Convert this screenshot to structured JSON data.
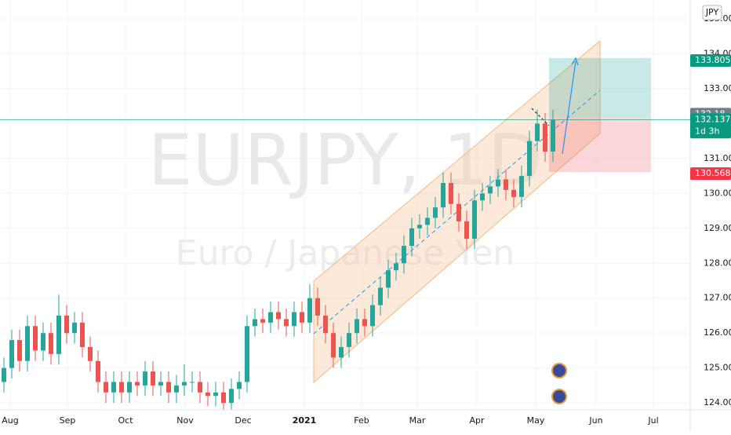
{
  "chart_data": {
    "type": "candlestick",
    "title": "EURJPY, 1D",
    "subtitle": "Euro / Japanese Yen",
    "currency": "JPY",
    "up_color": "#26a69a",
    "down_color": "#ef5350",
    "xlim": [
      -0.5,
      87.5
    ],
    "xticks": [
      {
        "value": 0.8,
        "label": "Aug"
      },
      {
        "value": 8.1,
        "label": "Sep"
      },
      {
        "value": 15.5,
        "label": "Oct"
      },
      {
        "value": 23.1,
        "label": "Nov"
      },
      {
        "value": 30.5,
        "label": "Dec"
      },
      {
        "value": 38.3,
        "label": "2021"
      },
      {
        "value": 45.6,
        "label": "Feb"
      },
      {
        "value": 52.7,
        "label": "Mar"
      },
      {
        "value": 60.3,
        "label": "Apr"
      },
      {
        "value": 67.8,
        "label": "May"
      },
      {
        "value": 75.5,
        "label": "Jun"
      },
      {
        "value": 82.8,
        "label": "Jul"
      }
    ],
    "ylim": [
      123.8,
      135.54
    ],
    "yticks": [
      {
        "value": 124,
        "label": "124.000"
      },
      {
        "value": 125,
        "label": "125.000"
      },
      {
        "value": 126,
        "label": "126.000"
      },
      {
        "value": 127,
        "label": "127.000"
      },
      {
        "value": 128,
        "label": "128.000"
      },
      {
        "value": 129,
        "label": "129.000"
      },
      {
        "value": 130,
        "label": "130.000"
      },
      {
        "value": 131,
        "label": "131.000"
      },
      {
        "value": 133,
        "label": "133.000"
      },
      {
        "value": 134,
        "label": "134.000"
      },
      {
        "value": 135,
        "label": "135.000"
      }
    ],
    "grid": true,
    "open": [
      124.6,
      125.0,
      125.8,
      125.2,
      126.2,
      125.5,
      126.0,
      125.4,
      126.5,
      126.0,
      126.3,
      125.6,
      125.2,
      124.6,
      124.3,
      124.6,
      124.3,
      124.6,
      124.5,
      124.9,
      124.5,
      124.6,
      124.3,
      124.5,
      124.6,
      124.6,
      124.3,
      124.2,
      124.3,
      124.0,
      124.4,
      124.6,
      126.2,
      126.4,
      126.3,
      126.6,
      126.4,
      126.2,
      126.6,
      126.3,
      127.0,
      126.5,
      126.0,
      125.3,
      125.6,
      126.0,
      126.4,
      126.2,
      126.8,
      127.3,
      127.8,
      128.0,
      128.5,
      129.0,
      129.1,
      129.3,
      129.6,
      130.3,
      129.7,
      129.2,
      128.7,
      129.8,
      130.0,
      130.2,
      130.4,
      130.1,
      129.9,
      130.5,
      131.5,
      132.0,
      131.2
    ],
    "high": [
      125.3,
      126.1,
      126.1,
      126.5,
      126.5,
      126.3,
      126.3,
      127.1,
      126.8,
      126.6,
      126.6,
      125.9,
      125.5,
      124.9,
      124.9,
      124.9,
      124.9,
      124.9,
      125.2,
      125.2,
      124.9,
      124.9,
      124.8,
      125.1,
      124.9,
      124.9,
      124.6,
      124.6,
      124.6,
      124.7,
      124.9,
      126.5,
      126.7,
      126.7,
      126.9,
      126.9,
      126.7,
      126.9,
      126.9,
      127.4,
      127.3,
      126.8,
      126.3,
      125.9,
      126.3,
      126.7,
      126.7,
      127.1,
      127.6,
      128.1,
      128.3,
      128.8,
      129.3,
      129.4,
      129.6,
      129.9,
      130.6,
      130.6,
      130.0,
      129.5,
      130.1,
      130.3,
      130.5,
      130.7,
      130.7,
      130.4,
      130.8,
      131.8,
      132.4,
      132.3,
      132.4
    ],
    "low": [
      124.3,
      124.7,
      124.9,
      124.9,
      125.2,
      125.2,
      125.1,
      125.1,
      125.7,
      125.7,
      125.3,
      124.9,
      124.3,
      124.0,
      124.0,
      124.0,
      124.0,
      124.2,
      124.2,
      124.2,
      124.2,
      124.0,
      124.0,
      124.2,
      124.3,
      124.0,
      123.9,
      123.9,
      123.8,
      123.8,
      124.1,
      124.3,
      125.9,
      126.0,
      126.0,
      126.1,
      125.9,
      125.9,
      126.0,
      126.0,
      126.2,
      125.7,
      125.0,
      125.0,
      125.3,
      125.7,
      125.9,
      125.9,
      126.5,
      127.0,
      127.5,
      127.7,
      128.2,
      128.7,
      128.8,
      129.0,
      129.3,
      129.4,
      128.9,
      128.4,
      128.4,
      129.5,
      129.7,
      129.9,
      129.8,
      129.6,
      129.6,
      130.2,
      131.2,
      130.9,
      130.9
    ],
    "close": [
      125.0,
      125.8,
      125.2,
      126.2,
      125.5,
      126.0,
      125.4,
      126.5,
      126.0,
      126.3,
      125.6,
      125.2,
      124.6,
      124.3,
      124.6,
      124.3,
      124.6,
      124.5,
      124.9,
      124.5,
      124.6,
      124.3,
      124.5,
      124.6,
      124.6,
      124.3,
      124.2,
      124.3,
      124.0,
      124.4,
      124.6,
      126.2,
      126.4,
      126.3,
      126.6,
      126.4,
      126.2,
      126.6,
      126.3,
      127.0,
      126.5,
      126.0,
      125.3,
      125.6,
      126.0,
      126.4,
      126.2,
      126.8,
      127.3,
      127.8,
      128.0,
      128.5,
      129.0,
      129.1,
      129.3,
      129.6,
      130.3,
      129.7,
      129.2,
      128.7,
      129.8,
      130.0,
      130.2,
      130.4,
      130.1,
      129.9,
      130.5,
      131.5,
      132.0,
      131.2,
      132.1
    ],
    "price_marks": [
      {
        "value": 133.805,
        "color": "#089981"
      },
      {
        "value": 132.18,
        "color": "#787b86"
      },
      {
        "value": 132.137,
        "color": "#089981"
      },
      {
        "value": 130.568,
        "color": "#f23645"
      }
    ],
    "countdown": "1d 3h"
  }
}
